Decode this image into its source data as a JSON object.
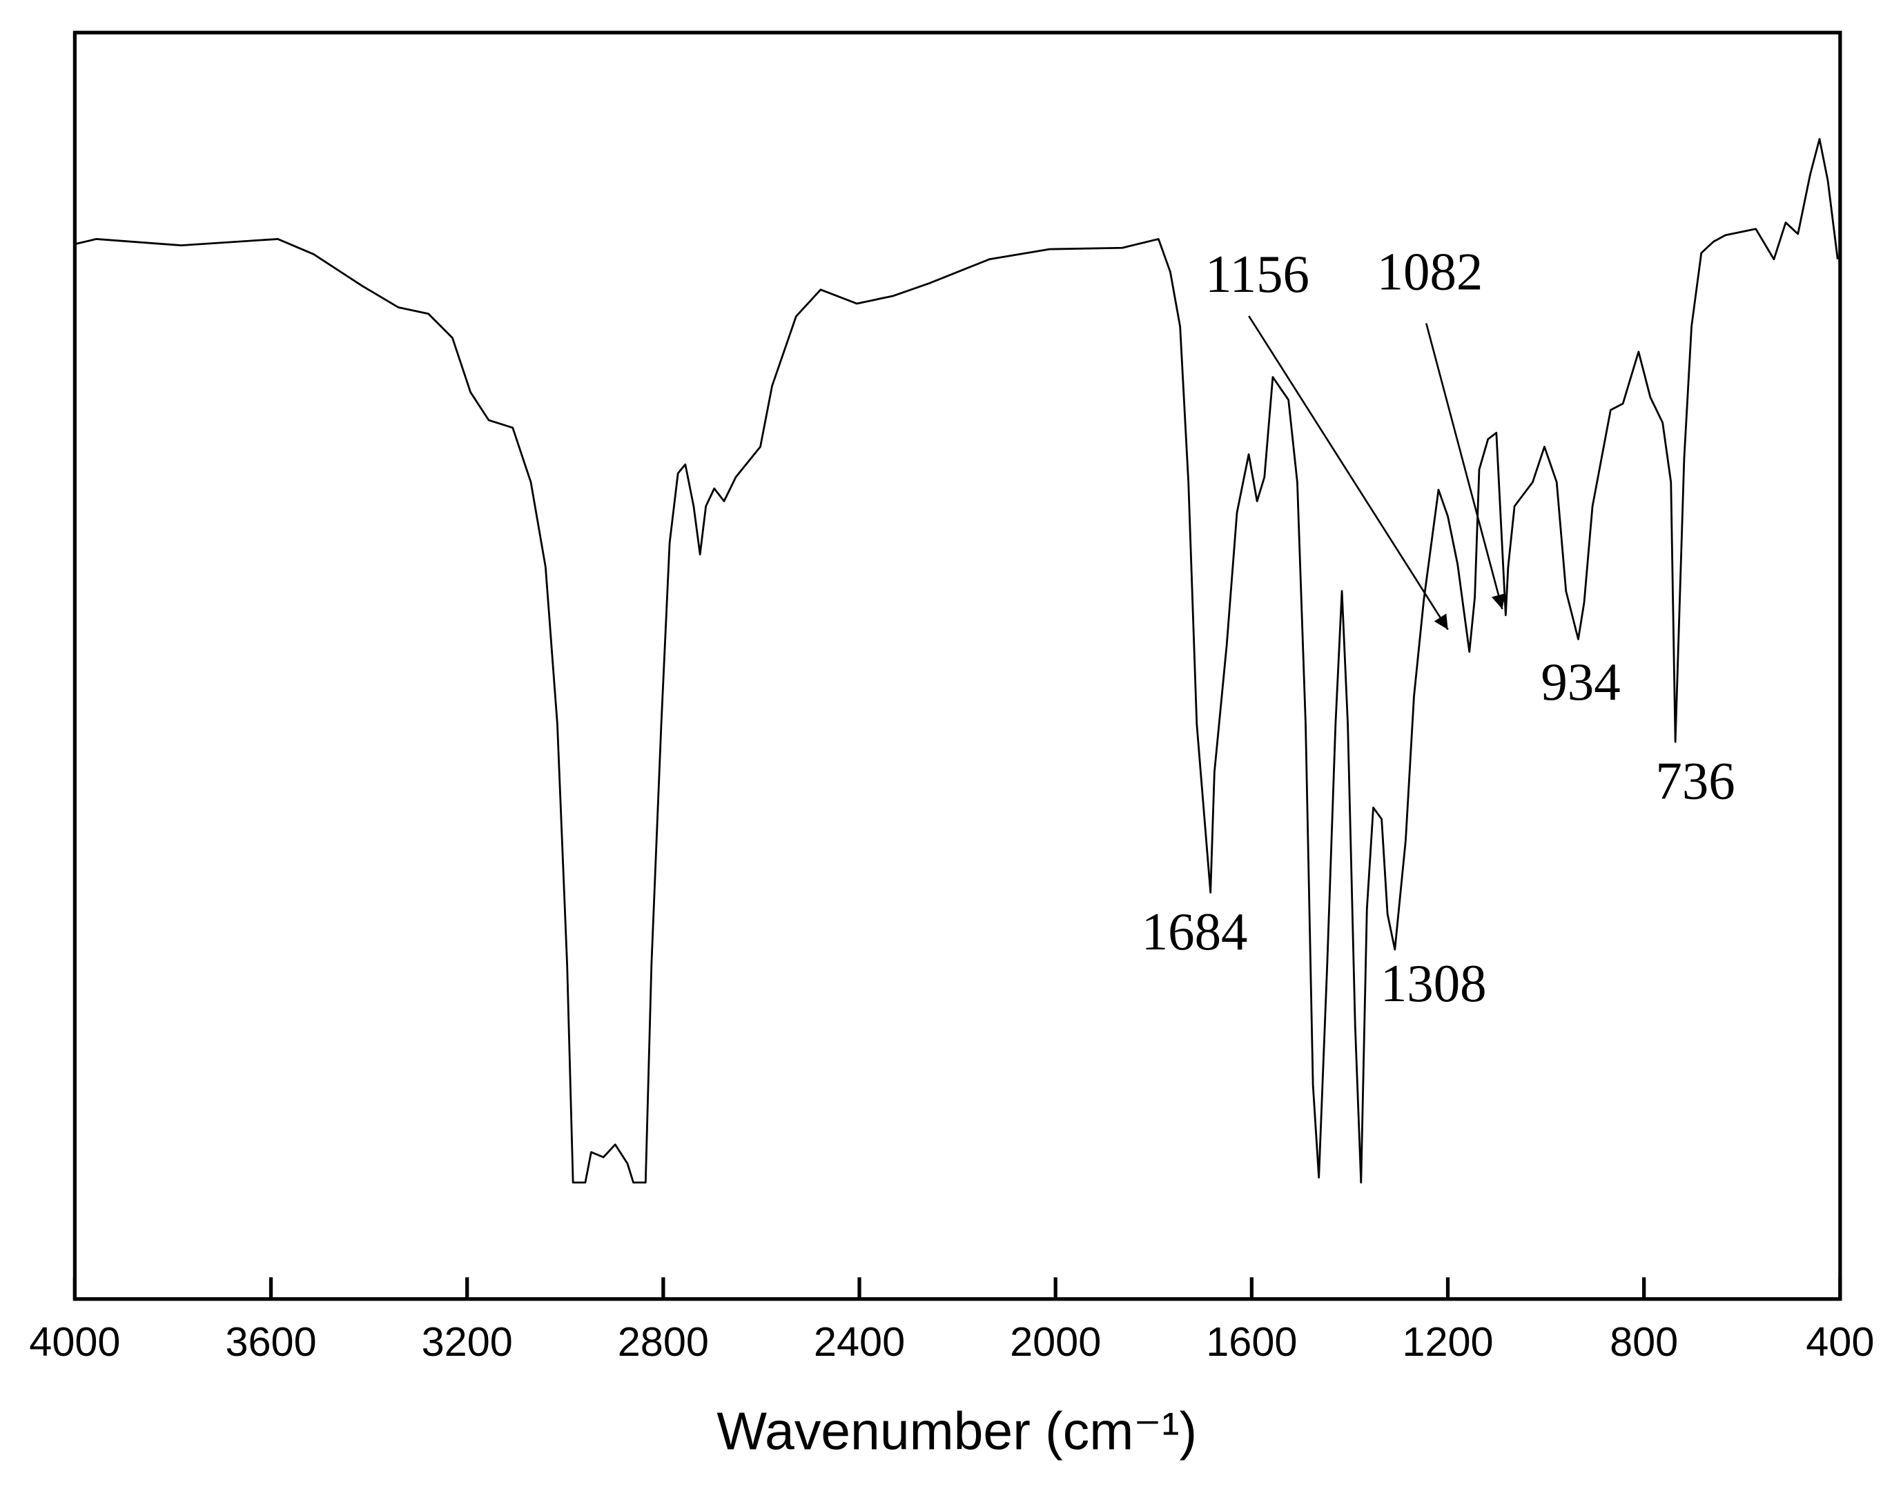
{
  "chart_data": {
    "type": "line",
    "x_label": "Wavenumber (cm⁻¹)",
    "color": "#000000",
    "xlim": [
      4000,
      400
    ],
    "ylim": [
      0,
      100
    ],
    "xticks": [
      4000,
      3600,
      3200,
      2800,
      2400,
      2000,
      1600,
      1200,
      800,
      400
    ],
    "annotations": [
      "1156",
      "1082",
      "934",
      "736",
      "1684",
      "1308"
    ],
    "x": [
      4000,
      3956,
      3783,
      3586,
      3513,
      3414,
      3340,
      3279,
      3230,
      3193,
      3156,
      3107,
      3070,
      3040,
      3016,
      2996,
      2984,
      2959,
      2947,
      2922,
      2898,
      2873,
      2861,
      2836,
      2824,
      2804,
      2787,
      2770,
      2755,
      2738,
      2725,
      2713,
      2696,
      2676,
      2652,
      2602,
      2578,
      2529,
      2479,
      2405,
      2332,
      2258,
      2135,
      2012,
      1864,
      1790,
      1766,
      1746,
      1729,
      1712,
      1684,
      1676,
      1651,
      1630,
      1606,
      1589,
      1574,
      1557,
      1525,
      1507,
      1490,
      1475,
      1463,
      1446,
      1429,
      1416,
      1404,
      1389,
      1377,
      1365,
      1352,
      1335,
      1323,
      1308,
      1286,
      1269,
      1249,
      1219,
      1200,
      1180,
      1156,
      1145,
      1136,
      1118,
      1101,
      1082,
      1077,
      1064,
      1027,
      1003,
      978,
      959,
      934,
      922,
      905,
      868,
      843,
      811,
      787,
      762,
      745,
      736,
      718,
      703,
      683,
      658,
      634,
      572,
      535,
      511,
      486,
      461,
      442,
      425,
      405
    ],
    "values": [
      83.3,
      83.7,
      83.2,
      83.7,
      82.5,
      80.0,
      78.3,
      77.8,
      75.9,
      71.6,
      69.4,
      68.8,
      64.5,
      57.8,
      45.4,
      26.4,
      9.2,
      9.2,
      11.6,
      11.2,
      12.2,
      10.7,
      9.2,
      9.2,
      26.4,
      45.4,
      59.7,
      65.2,
      65.9,
      62.6,
      58.8,
      62.6,
      64.0,
      63.0,
      64.9,
      67.3,
      72.1,
      77.6,
      79.7,
      78.6,
      79.2,
      80.2,
      82.1,
      82.9,
      83.0,
      83.7,
      81.1,
      76.8,
      64.5,
      45.4,
      32.1,
      41.6,
      51.6,
      62.1,
      66.7,
      63.0,
      64.9,
      72.8,
      71.0,
      64.5,
      45.4,
      16.9,
      9.6,
      26.4,
      45.4,
      55.9,
      45.4,
      21.6,
      9.2,
      30.8,
      38.8,
      37.9,
      30.4,
      27.6,
      36.2,
      47.6,
      55.2,
      63.9,
      61.8,
      58.0,
      51.1,
      55.4,
      65.5,
      67.9,
      68.4,
      54.0,
      57.8,
      62.6,
      64.5,
      67.3,
      64.5,
      55.9,
      52.1,
      55.0,
      62.6,
      70.2,
      70.7,
      74.8,
      71.2,
      69.2,
      64.5,
      44.0,
      66.4,
      76.8,
      82.6,
      83.5,
      84.0,
      84.5,
      82.1,
      85.0,
      84.1,
      88.8,
      91.6,
      88.3,
      82.1
    ]
  }
}
